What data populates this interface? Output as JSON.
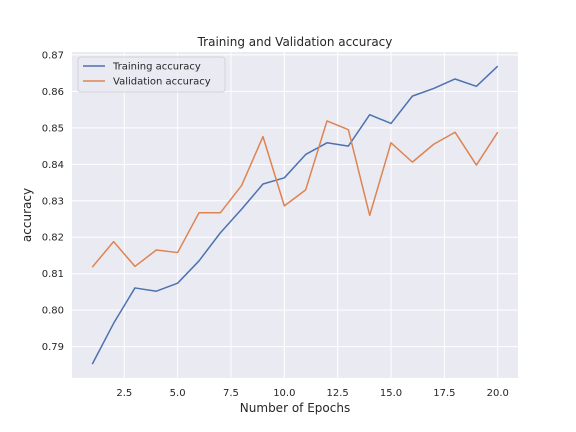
{
  "chart_data": {
    "type": "line",
    "title": "Training and Validation accuracy",
    "xlabel": "Number of Epochs",
    "ylabel": "accuracy",
    "xlim": [
      0.05,
      20.95
    ],
    "ylim": [
      0.7814,
      0.8708
    ],
    "xticks": [
      2.5,
      5.0,
      7.5,
      10.0,
      12.5,
      15.0,
      17.5,
      20.0
    ],
    "xtick_labels": [
      "2.5",
      "5.0",
      "7.5",
      "10.0",
      "12.5",
      "15.0",
      "17.5",
      "20.0"
    ],
    "yticks": [
      0.79,
      0.8,
      0.81,
      0.82,
      0.83,
      0.84,
      0.85,
      0.86,
      0.87
    ],
    "ytick_labels": [
      "0.79",
      "0.80",
      "0.81",
      "0.82",
      "0.83",
      "0.84",
      "0.85",
      "0.86",
      "0.87"
    ],
    "grid": true,
    "legend_position": "top-left",
    "x": [
      1,
      2,
      3,
      4,
      5,
      6,
      7,
      8,
      9,
      10,
      11,
      12,
      13,
      14,
      15,
      16,
      17,
      18,
      19,
      20
    ],
    "series": [
      {
        "name": "Training accuracy",
        "color": "#4c72b0",
        "values": [
          0.7852,
          0.7964,
          0.8061,
          0.8052,
          0.8074,
          0.8135,
          0.8212,
          0.8277,
          0.8346,
          0.8363,
          0.8427,
          0.8459,
          0.845,
          0.8536,
          0.8512,
          0.8587,
          0.8608,
          0.8634,
          0.8614,
          0.8669
        ]
      },
      {
        "name": "Validation accuracy",
        "color": "#dd8452",
        "values": [
          0.8118,
          0.8188,
          0.812,
          0.8165,
          0.8158,
          0.8267,
          0.8267,
          0.8342,
          0.8476,
          0.8286,
          0.833,
          0.8519,
          0.8495,
          0.826,
          0.8459,
          0.8406,
          0.8455,
          0.8488,
          0.8398,
          0.8488
        ]
      }
    ]
  },
  "colors": {
    "plot_background": "#eaeaf2",
    "grid": "#ffffff",
    "text": "#262626"
  }
}
